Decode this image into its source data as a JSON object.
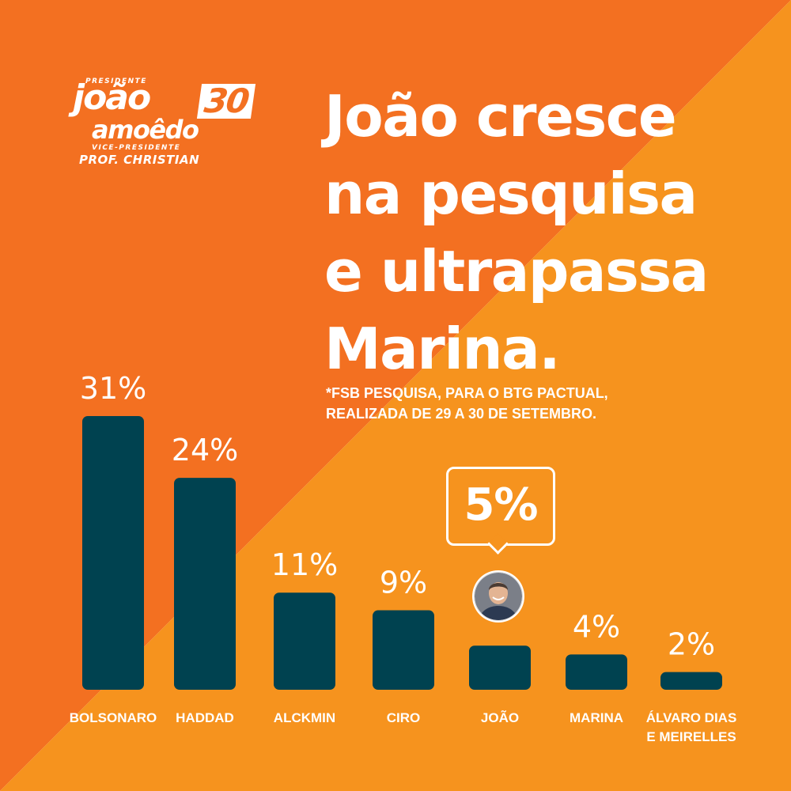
{
  "logo": {
    "role_president": "PRESIDENTE",
    "name_line1": "joão",
    "number": "30",
    "name_line2": "amoêdo",
    "role_vice": "VICE-PRESIDENTE",
    "vice_name": "PROF. CHRISTIAN"
  },
  "headline": {
    "line1": "João cresce",
    "line2": "na pesquisa",
    "line3": "e ultrapassa",
    "line4": "Marina."
  },
  "source": {
    "line1": "*FSB PESQUISA, PARA O BTG PACTUAL,",
    "line2": "REALIZADA DE 29 A 30 DE SETEMBRO."
  },
  "colors": {
    "bg_dark_orange": "#f37021",
    "bg_light_orange": "#f6931e",
    "bar": "#004250",
    "text": "#ffffff"
  },
  "highlight": {
    "value_label": "5%",
    "avatar_icon": "candidate-photo-icon"
  },
  "chart_data": {
    "type": "bar",
    "title": "",
    "xlabel": "",
    "ylabel": "",
    "ylim": [
      0,
      31
    ],
    "categories": [
      "BOLSONARO",
      "HADDAD",
      "ALCKMIN",
      "CIRO",
      "JOÃO",
      "MARINA",
      "ÁLVARO DIAS E MEIRELLES"
    ],
    "category_label_lines": [
      [
        "BOLSONARO"
      ],
      [
        "HADDAD"
      ],
      [
        "ALCKMIN"
      ],
      [
        "CIRO"
      ],
      [
        "JOÃO"
      ],
      [
        "MARINA"
      ],
      [
        "ÁLVARO DIAS",
        "E MEIRELLES"
      ]
    ],
    "values": [
      31,
      24,
      11,
      9,
      5,
      4,
      2
    ],
    "value_labels": [
      "31%",
      "24%",
      "11%",
      "9%",
      "",
      "4%",
      "2%"
    ],
    "highlighted_category": "JOÃO"
  }
}
